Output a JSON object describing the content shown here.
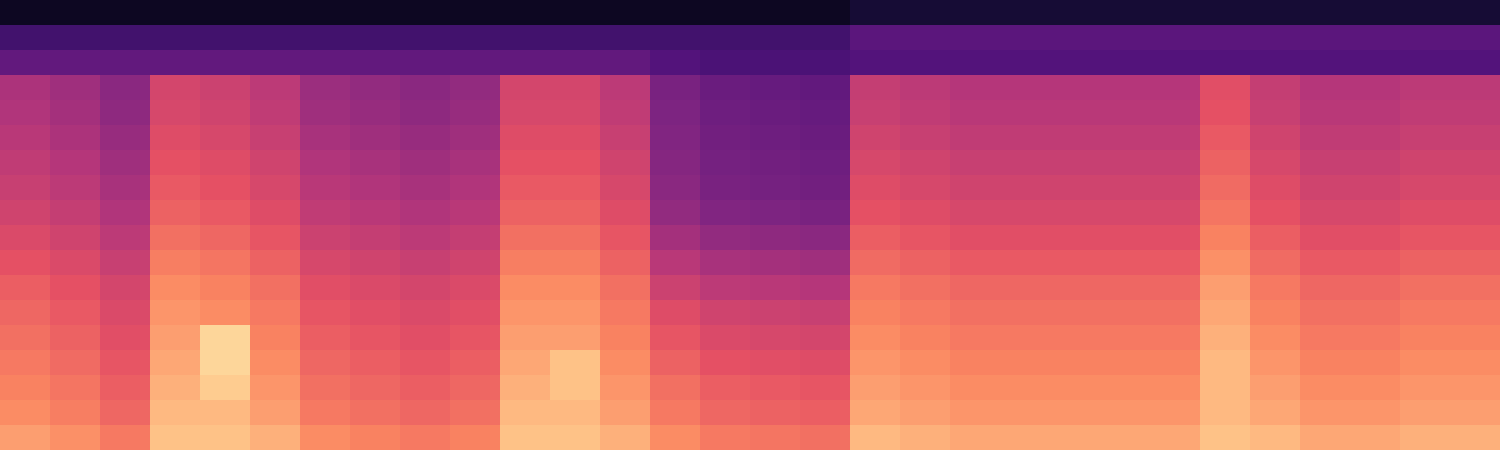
{
  "chart_data": {
    "type": "heatmap",
    "tick_labels": false,
    "zlim": [
      0,
      100
    ],
    "cells": [
      [
        6,
        6,
        6,
        6,
        6,
        6,
        6,
        6,
        6,
        6,
        6,
        6,
        6,
        6,
        6,
        6,
        6,
        10,
        10,
        10,
        10,
        10,
        10,
        10,
        10,
        10,
        10,
        10,
        10,
        10
      ],
      [
        22,
        22,
        22,
        22,
        22,
        22,
        22,
        22,
        22,
        22,
        22,
        22,
        22,
        22,
        22,
        22,
        22,
        28,
        28,
        28,
        28,
        28,
        28,
        28,
        28,
        28,
        28,
        28,
        28,
        28
      ],
      [
        30,
        30,
        30,
        30,
        30,
        30,
        30,
        30,
        30,
        30,
        30,
        30,
        30,
        26,
        24,
        24,
        24,
        26,
        26,
        26,
        26,
        26,
        26,
        26,
        26,
        26,
        26,
        26,
        26,
        26
      ],
      [
        48,
        45,
        40,
        58,
        56,
        52,
        44,
        42,
        40,
        42,
        58,
        58,
        52,
        36,
        32,
        31,
        30,
        54,
        52,
        50,
        50,
        50,
        50,
        50,
        62,
        54,
        50,
        50,
        52,
        52
      ],
      [
        49,
        46,
        41,
        59,
        57,
        53,
        45,
        43,
        41,
        43,
        59,
        59,
        53,
        37,
        33,
        32,
        31,
        55,
        53,
        51,
        51,
        51,
        51,
        51,
        63,
        55,
        51,
        51,
        53,
        53
      ],
      [
        51,
        48,
        43,
        61,
        59,
        55,
        47,
        45,
        43,
        45,
        61,
        61,
        55,
        38,
        34,
        33,
        32,
        57,
        55,
        53,
        53,
        53,
        53,
        53,
        65,
        57,
        53,
        53,
        55,
        55
      ],
      [
        53,
        50,
        45,
        63,
        61,
        57,
        49,
        47,
        45,
        47,
        63,
        63,
        57,
        39,
        35,
        34,
        33,
        59,
        57,
        55,
        55,
        55,
        55,
        55,
        67,
        59,
        55,
        55,
        57,
        57
      ],
      [
        55,
        52,
        47,
        65,
        63,
        59,
        51,
        49,
        47,
        49,
        65,
        65,
        59,
        40,
        36,
        35,
        34,
        61,
        59,
        57,
        57,
        57,
        57,
        57,
        69,
        61,
        57,
        57,
        59,
        59
      ],
      [
        57,
        54,
        49,
        67,
        65,
        61,
        53,
        51,
        49,
        51,
        67,
        67,
        61,
        42,
        38,
        37,
        36,
        63,
        61,
        59,
        59,
        59,
        59,
        59,
        71,
        63,
        59,
        59,
        61,
        61
      ],
      [
        60,
        57,
        52,
        70,
        68,
        64,
        56,
        54,
        52,
        54,
        70,
        70,
        64,
        46,
        42,
        41,
        40,
        66,
        64,
        62,
        62,
        62,
        62,
        62,
        74,
        66,
        62,
        62,
        64,
        64
      ],
      [
        63,
        60,
        55,
        73,
        71,
        67,
        59,
        57,
        55,
        57,
        73,
        73,
        67,
        51,
        47,
        46,
        45,
        69,
        67,
        65,
        65,
        65,
        65,
        65,
        77,
        69,
        65,
        65,
        67,
        67
      ],
      [
        66,
        63,
        58,
        76,
        74,
        70,
        62,
        60,
        58,
        60,
        76,
        76,
        70,
        56,
        52,
        51,
        50,
        72,
        70,
        68,
        68,
        68,
        68,
        68,
        80,
        72,
        68,
        68,
        70,
        70
      ],
      [
        68,
        65,
        60,
        78,
        76,
        72,
        64,
        62,
        60,
        62,
        78,
        78,
        72,
        61,
        57,
        56,
        55,
        74,
        72,
        70,
        70,
        70,
        70,
        70,
        82,
        74,
        70,
        70,
        72,
        72
      ],
      [
        70,
        67,
        62,
        80,
        92,
        74,
        66,
        64,
        62,
        64,
        80,
        80,
        74,
        64,
        60,
        59,
        58,
        76,
        74,
        72,
        72,
        72,
        72,
        72,
        84,
        76,
        72,
        72,
        74,
        74
      ],
      [
        72,
        69,
        64,
        82,
        92,
        76,
        68,
        66,
        64,
        66,
        82,
        88,
        76,
        67,
        63,
        62,
        61,
        78,
        76,
        74,
        74,
        74,
        74,
        74,
        86,
        78,
        74,
        74,
        76,
        76
      ],
      [
        74,
        71,
        66,
        84,
        90,
        78,
        70,
        68,
        66,
        68,
        84,
        88,
        78,
        70,
        66,
        65,
        64,
        80,
        78,
        76,
        76,
        76,
        76,
        76,
        86,
        80,
        76,
        76,
        78,
        78
      ],
      [
        76,
        73,
        68,
        86,
        86,
        80,
        72,
        70,
        68,
        70,
        86,
        86,
        80,
        72,
        68,
        67,
        66,
        82,
        80,
        78,
        78,
        78,
        78,
        78,
        86,
        82,
        78,
        78,
        80,
        80
      ],
      [
        80,
        77,
        72,
        88,
        88,
        84,
        76,
        74,
        72,
        74,
        88,
        88,
        84,
        76,
        72,
        71,
        70,
        86,
        84,
        82,
        82,
        82,
        82,
        82,
        88,
        86,
        82,
        82,
        84,
        84
      ]
    ]
  }
}
